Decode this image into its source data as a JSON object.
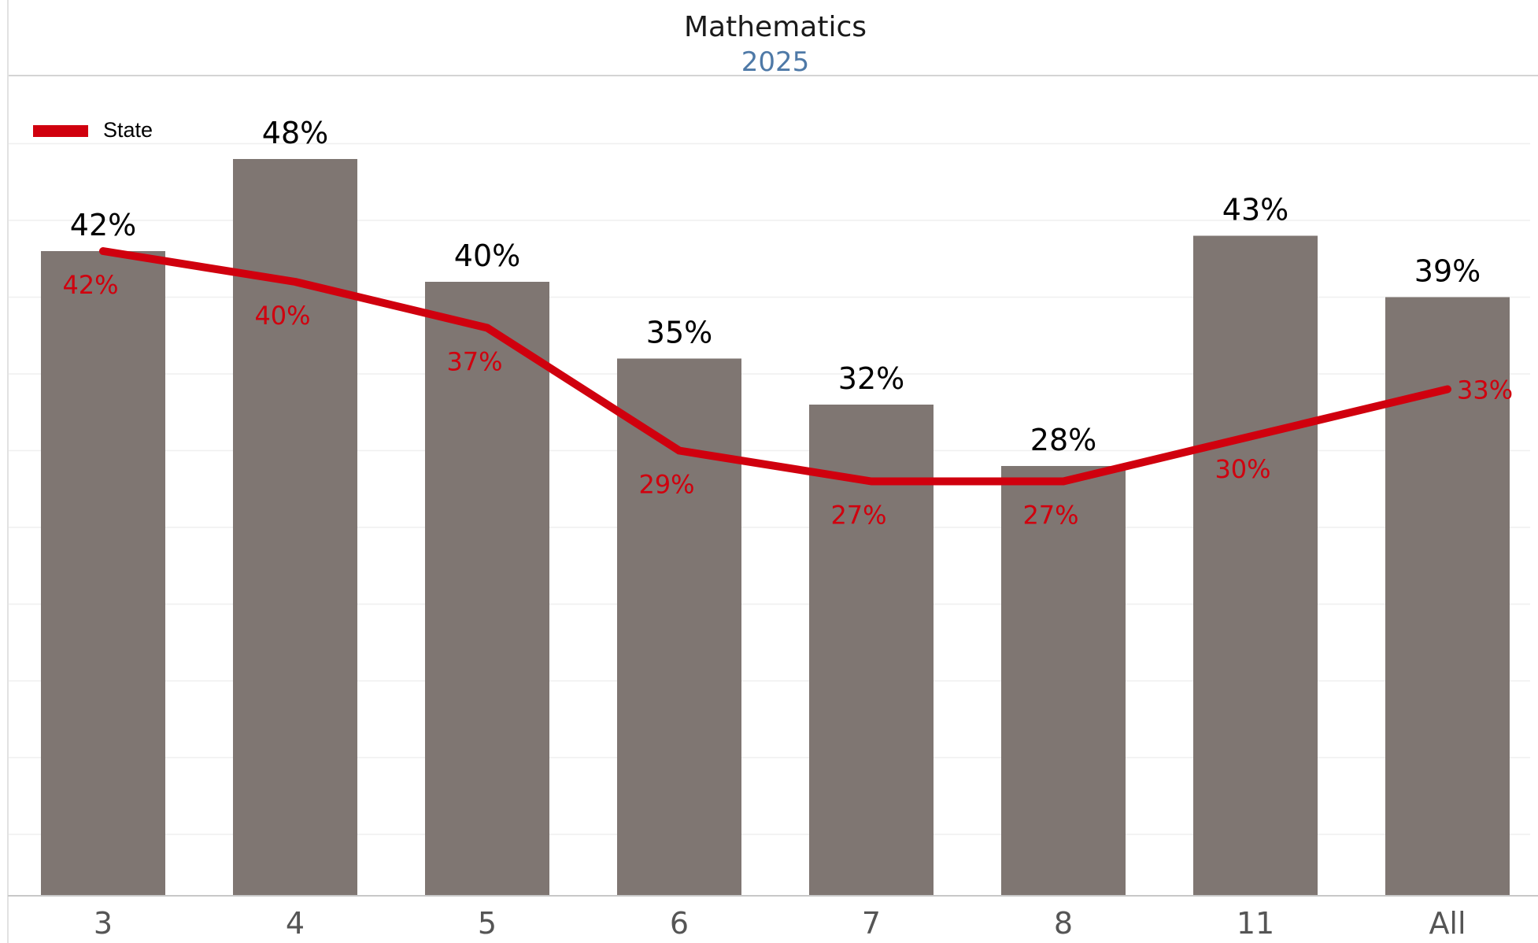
{
  "chart_data": {
    "type": "bar",
    "title": "Mathematics",
    "subtitle": "2025",
    "categories": [
      "3",
      "4",
      "5",
      "6",
      "7",
      "8",
      "11",
      "All"
    ],
    "series": [
      {
        "type": "bar",
        "values": [
          42,
          48,
          40,
          35,
          32,
          28,
          43,
          39
        ],
        "labels": [
          "42%",
          "48%",
          "40%",
          "35%",
          "32%",
          "28%",
          "43%",
          "39%"
        ],
        "color": "#7f7672"
      },
      {
        "name": "State",
        "type": "line",
        "values": [
          42,
          40,
          37,
          29,
          27,
          27,
          30,
          33
        ],
        "labels": [
          "42%",
          "40%",
          "37%",
          "29%",
          "27%",
          "27%",
          "30%",
          "33%"
        ],
        "color": "#d0000e"
      }
    ],
    "ylim": [
      0,
      54
    ],
    "grid": true,
    "legend_position": "top-left"
  }
}
